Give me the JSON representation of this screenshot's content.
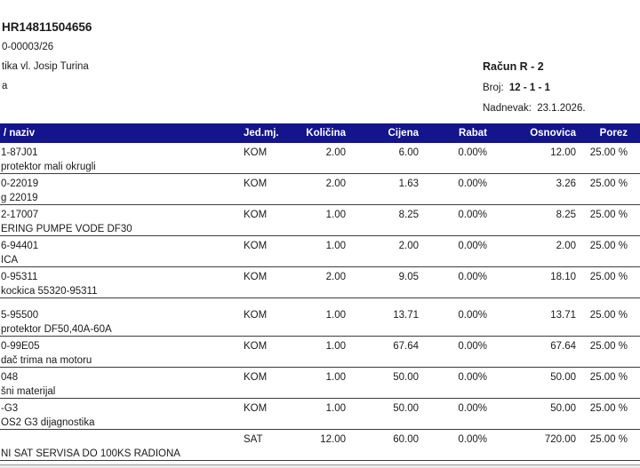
{
  "colors": {
    "table_header_bg": "#14148C",
    "table_header_text": "#ffffff"
  },
  "header": {
    "company_id": "HR14811504656",
    "doc_number": "0-00003/26",
    "company_line": "tika vl. Josip Turina",
    "company_line2": "a",
    "invoice_title": "Račun R - 2",
    "broj_label": "Broj:",
    "broj_value": "12 - 1 - 1",
    "date_label": "Nadnevak:",
    "date_value": "23.1.2026."
  },
  "table": {
    "columns": {
      "naziv": "/ naziv",
      "jedmj": "Jed.mj.",
      "kolicina": "Količina",
      "cijena": "Cijena",
      "rabat": "Rabat",
      "osnovica": "Osnovica",
      "porez": "Porez"
    },
    "rows": [
      {
        "code": "1-87J01",
        "name": "protektor mali okrugli",
        "unit": "KOM",
        "qty": "2.00",
        "price": "6.00",
        "rabat": "0.00%",
        "base": "12.00",
        "tax": "25.00 %"
      },
      {
        "code": "0-22019",
        "name": "g 22019",
        "unit": "KOM",
        "qty": "2.00",
        "price": "1.63",
        "rabat": "0.00%",
        "base": "3.26",
        "tax": "25.00 %"
      },
      {
        "code": "2-17007",
        "name": "ERING PUMPE VODE DF30",
        "unit": "KOM",
        "qty": "1.00",
        "price": "8.25",
        "rabat": "0.00%",
        "base": "8.25",
        "tax": "25.00 %"
      },
      {
        "code": "6-94401",
        "name": "ICA",
        "unit": "KOM",
        "qty": "1.00",
        "price": "2.00",
        "rabat": "0.00%",
        "base": "2.00",
        "tax": "25.00 %"
      },
      {
        "code": "0-95311",
        "name": "kockica 55320-95311",
        "unit": "KOM",
        "qty": "2.00",
        "price": "9.05",
        "rabat": "0.00%",
        "base": "18.10",
        "tax": "25.00 %"
      },
      {
        "code": "5-95500",
        "name": "protektor DF50,40A-60A",
        "unit": "KOM",
        "qty": "1.00",
        "price": "13.71",
        "rabat": "0.00%",
        "base": "13.71",
        "tax": "25.00 %"
      },
      {
        "code": "0-99E05",
        "name": "dač trima na motoru",
        "unit": "KOM",
        "qty": "1.00",
        "price": "67.64",
        "rabat": "0.00%",
        "base": "67.64",
        "tax": "25.00 %"
      },
      {
        "code": "048",
        "name": "šni materijal",
        "unit": "KOM",
        "qty": "1.00",
        "price": "50.00",
        "rabat": "0.00%",
        "base": "50.00",
        "tax": "25.00 %"
      },
      {
        "code": "-G3",
        "name": "OS2 G3 dijagnostika",
        "unit": "KOM",
        "qty": "1.00",
        "price": "50.00",
        "rabat": "0.00%",
        "base": "50.00",
        "tax": "25.00 %"
      },
      {
        "code": "",
        "name": "NI SAT SERVISA DO 100KS RADIONA",
        "unit": "SAT",
        "qty": "12.00",
        "price": "60.00",
        "rabat": "0.00%",
        "base": "720.00",
        "tax": "25.00 %"
      }
    ]
  }
}
